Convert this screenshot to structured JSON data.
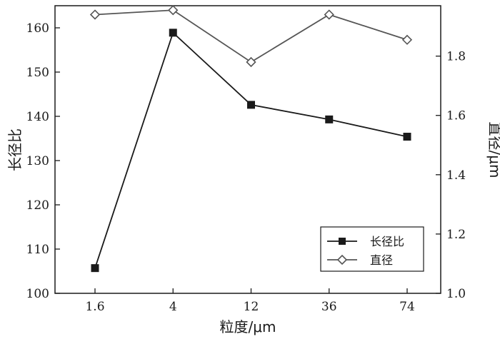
{
  "chart_data": {
    "type": "line",
    "categories": [
      "1.6",
      "4",
      "12",
      "36",
      "74"
    ],
    "xlabel": "粒度/μm",
    "ylabel_left": "长径比",
    "ylabel_right": "直径/μm",
    "ylim_left": [
      100,
      165
    ],
    "ylim_right": [
      1.0,
      1.97
    ],
    "yticks_left": [
      "100",
      "110",
      "120",
      "130",
      "140",
      "150",
      "160"
    ],
    "yticks_right": [
      "1.0",
      "1.2",
      "1.4",
      "1.6",
      "1.8"
    ],
    "grid": false,
    "legend_position": "bottom-right",
    "series": [
      {
        "name": "长径比",
        "axis": "left",
        "marker": "filled-square",
        "color": "#1a1a1a",
        "values": [
          105.7,
          158.9,
          142.6,
          139.3,
          135.4
        ]
      },
      {
        "name": "直径",
        "axis": "right",
        "marker": "open-diamond",
        "color": "#555555",
        "values": [
          1.94,
          1.955,
          1.78,
          1.94,
          1.855
        ]
      }
    ]
  }
}
